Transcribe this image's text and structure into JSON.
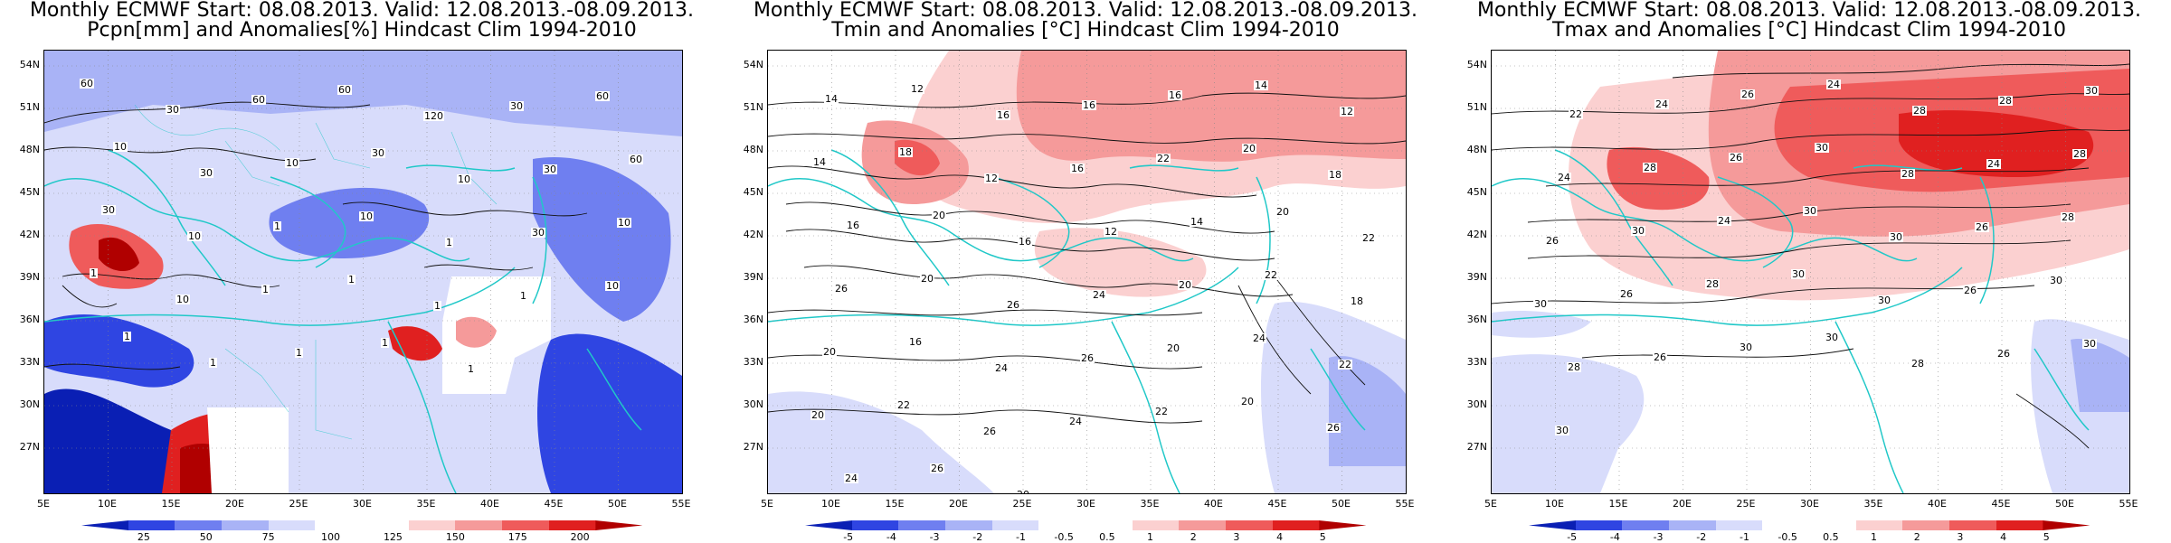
{
  "panels": [
    {
      "title_line1": "Monthly ECMWF Start: 08.08.2013. Valid: 12.08.2013.-08.09.2013.",
      "title_line2": "Pcpn[mm] and Anomalies[%] Hindcast Clim 1994-2010",
      "colorbar_ticks": [
        "25",
        "50",
        "75",
        "100",
        "125",
        "150",
        "175",
        "200"
      ],
      "colorbar_colors": [
        "#0a1fb4",
        "#2f45e2",
        "#6f7ff0",
        "#a9b3f6",
        "#d8dcfb",
        "#ffffff",
        "#ffffff",
        "#fbd0d0",
        "#f59a9a",
        "#ef5b5b",
        "#e02020",
        "#b00000"
      ],
      "contour_labels": [
        "60",
        "30",
        "60",
        "60",
        "120",
        "30",
        "60",
        "10",
        "30",
        "10",
        "30",
        "10",
        "30",
        "60",
        "30",
        "10",
        "1",
        "10",
        "1",
        "30",
        "10",
        "1",
        "10",
        "1",
        "1",
        "1",
        "1",
        "10",
        "1",
        "1",
        "1",
        "1",
        "1"
      ]
    },
    {
      "title_line1": "Monthly ECMWF Start: 08.08.2013. Valid: 12.08.2013.-08.09.2013.",
      "title_line2": "Tmin and Anomalies [°C] Hindcast Clim 1994-2010",
      "colorbar_ticks": [
        "-5",
        "-4",
        "-3",
        "-2",
        "-1",
        "-0.5",
        "0.5",
        "1",
        "2",
        "3",
        "4",
        "5"
      ],
      "colorbar_colors": [
        "#0a1fb4",
        "#2f45e2",
        "#6f7ff0",
        "#a9b3f6",
        "#d8dcfb",
        "#ffffff",
        "#ffffff",
        "#fbd0d0",
        "#f59a9a",
        "#ef5b5b",
        "#e02020",
        "#b00000"
      ],
      "contour_labels": [
        "14",
        "12",
        "16",
        "16",
        "16",
        "14",
        "12",
        "14",
        "18",
        "12",
        "16",
        "22",
        "20",
        "18",
        "16",
        "20",
        "16",
        "12",
        "14",
        "20",
        "22",
        "26",
        "20",
        "26",
        "24",
        "20",
        "22",
        "18",
        "20",
        "16",
        "24",
        "26",
        "20",
        "24",
        "22",
        "20",
        "22",
        "26",
        "24",
        "22",
        "20",
        "26",
        "24",
        "26",
        "20"
      ]
    },
    {
      "title_line1": "Monthly ECMWF Start: 08.08.2013. Valid: 12.08.2013.-08.09.2013.",
      "title_line2": "Tmax and Anomalies [°C] Hindcast Clim 1994-2010",
      "colorbar_ticks": [
        "-5",
        "-4",
        "-3",
        "-2",
        "-1",
        "-0.5",
        "0.5",
        "1",
        "2",
        "3",
        "4",
        "5"
      ],
      "colorbar_colors": [
        "#0a1fb4",
        "#2f45e2",
        "#6f7ff0",
        "#a9b3f6",
        "#d8dcfb",
        "#ffffff",
        "#ffffff",
        "#fbd0d0",
        "#f59a9a",
        "#ef5b5b",
        "#e02020",
        "#b00000"
      ],
      "contour_labels": [
        "22",
        "24",
        "26",
        "24",
        "28",
        "28",
        "30",
        "24",
        "28",
        "26",
        "30",
        "28",
        "24",
        "28",
        "26",
        "30",
        "24",
        "30",
        "30",
        "26",
        "28",
        "30",
        "26",
        "28",
        "30",
        "30",
        "26",
        "30",
        "28",
        "26",
        "30",
        "30",
        "28",
        "26",
        "30",
        "30"
      ]
    }
  ],
  "lat_labels": [
    "54N",
    "51N",
    "48N",
    "45N",
    "42N",
    "39N",
    "36N",
    "33N",
    "30N",
    "27N"
  ],
  "lon_labels": [
    "5E",
    "10E",
    "15E",
    "20E",
    "25E",
    "30E",
    "35E",
    "40E",
    "45E",
    "50E",
    "55E"
  ],
  "colors": {
    "coast": "#20c8c8",
    "contour": "#111111",
    "grid": "#888888"
  }
}
